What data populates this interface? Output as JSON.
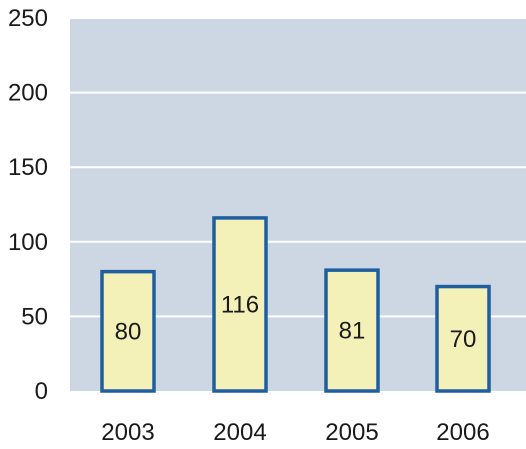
{
  "chart_data": {
    "type": "bar",
    "categories": [
      "2003",
      "2004",
      "2005",
      "2006"
    ],
    "values": [
      80,
      116,
      81,
      70
    ],
    "data_labels": [
      "80",
      "116",
      "81",
      "70"
    ],
    "title": "",
    "xlabel": "",
    "ylabel": "",
    "ylim": [
      0,
      250
    ],
    "yticks": [
      0,
      50,
      100,
      150,
      200,
      250
    ],
    "ytick_labels": [
      "0",
      "50",
      "100",
      "150",
      "200",
      "250"
    ],
    "grid": true,
    "legend": "none",
    "colors": {
      "plot_background": "#cdd6e3",
      "gridline": "#ffffff",
      "bar_fill": "#f3f0b8",
      "bar_stroke": "#1f5fa0"
    }
  }
}
